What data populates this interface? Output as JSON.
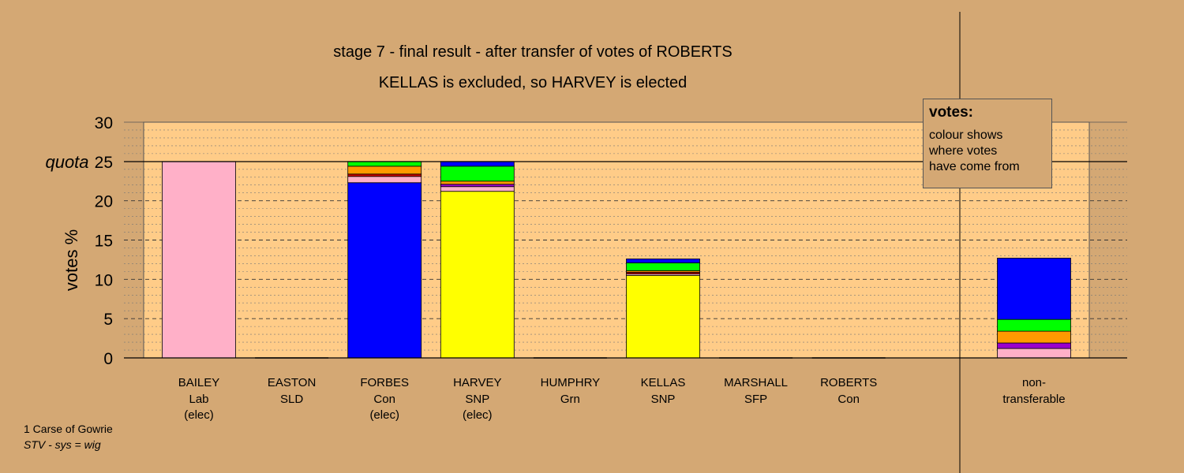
{
  "chart_data": {
    "type": "bar",
    "stacked": true,
    "title": "stage 7 - final result - after transfer of votes of ROBERTS",
    "subtitle": "KELLAS is excluded, so HARVEY is elected",
    "ylabel": "votes %",
    "ylim": [
      0,
      30
    ],
    "yticks": [
      "0",
      "5",
      "10",
      "15",
      "20",
      "25",
      "30"
    ],
    "quota": {
      "label": "quota",
      "value": 25
    },
    "grid": true,
    "legend": {
      "title": "votes:",
      "lines": [
        "colour shows",
        "where votes",
        "have come from"
      ],
      "placement": "top-right"
    },
    "categories": [
      {
        "name": "BAILEY",
        "party": "Lab",
        "note": "(elec)"
      },
      {
        "name": "EASTON",
        "party": "SLD",
        "note": ""
      },
      {
        "name": "FORBES",
        "party": "Con",
        "note": "(elec)"
      },
      {
        "name": "HARVEY",
        "party": "SNP",
        "note": "(elec)"
      },
      {
        "name": "HUMPHRY",
        "party": "Grn",
        "note": ""
      },
      {
        "name": "KELLAS",
        "party": "SNP",
        "note": ""
      },
      {
        "name": "MARSHALL",
        "party": "SFP",
        "note": ""
      },
      {
        "name": "ROBERTS",
        "party": "Con",
        "note": ""
      }
    ],
    "extra_category": {
      "line1": "non-",
      "line2": "transferable"
    },
    "colors": {
      "background": "#d4a874",
      "plot_background": "#ffcc88",
      "pink": "#ffb0c8",
      "blue": "#0000ff",
      "yellow": "#ffff00",
      "green": "#00ff00",
      "orange": "#ff9900",
      "purple": "#9900cc",
      "red": "#cc0000"
    },
    "stacks": [
      [
        {
          "color": "pink",
          "value": 25.0
        }
      ],
      [],
      [
        {
          "color": "blue",
          "value": 22.3
        },
        {
          "color": "pink",
          "value": 0.8
        },
        {
          "color": "red",
          "value": 0.3
        },
        {
          "color": "orange",
          "value": 1.0
        },
        {
          "color": "green",
          "value": 0.6
        }
      ],
      [
        {
          "color": "yellow",
          "value": 21.2
        },
        {
          "color": "pink",
          "value": 0.6
        },
        {
          "color": "purple",
          "value": 0.3
        },
        {
          "color": "orange",
          "value": 0.4
        },
        {
          "color": "green",
          "value": 1.9
        },
        {
          "color": "blue",
          "value": 0.6
        }
      ],
      [],
      [
        {
          "color": "yellow",
          "value": 10.5
        },
        {
          "color": "pink",
          "value": 0.2
        },
        {
          "color": "red",
          "value": 0.2
        },
        {
          "color": "orange",
          "value": 0.2
        },
        {
          "color": "green",
          "value": 1.0
        },
        {
          "color": "blue",
          "value": 0.5
        }
      ],
      [],
      []
    ],
    "non_transferable": [
      {
        "color": "pink",
        "value": 1.2
      },
      {
        "color": "purple",
        "value": 0.7
      },
      {
        "color": "orange",
        "value": 1.5
      },
      {
        "color": "green",
        "value": 1.5
      },
      {
        "color": "blue",
        "value": 7.8
      }
    ]
  },
  "footer": {
    "line1": "1 Carse of Gowrie",
    "line2": "STV - sys = wig"
  }
}
